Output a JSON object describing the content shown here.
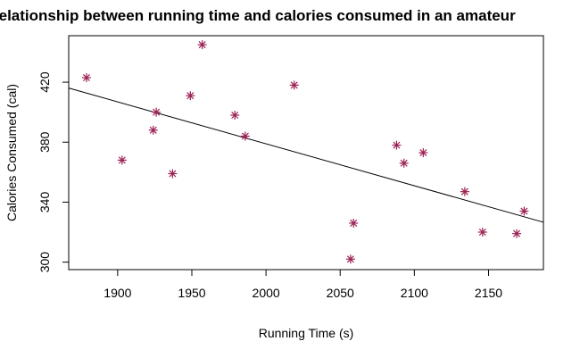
{
  "chart_data": {
    "type": "scatter",
    "title": "relationship between running time and calories consumed in an amateur",
    "xlabel": "Running Time (s)",
    "ylabel": "Calories Consumed (cal)",
    "xlim": [
      1867,
      2187
    ],
    "ylim": [
      295,
      451
    ],
    "xticks": [
      1900,
      1950,
      2000,
      2050,
      2100,
      2150
    ],
    "yticks": [
      300,
      340,
      380,
      420
    ],
    "marker": "asterisk",
    "point_color": "#9b2255",
    "grid": false,
    "legend": "none",
    "points": [
      {
        "x": 1879,
        "y": 423
      },
      {
        "x": 1903,
        "y": 368
      },
      {
        "x": 1924,
        "y": 388
      },
      {
        "x": 1926,
        "y": 400
      },
      {
        "x": 1937,
        "y": 359
      },
      {
        "x": 1949,
        "y": 411
      },
      {
        "x": 1957,
        "y": 445
      },
      {
        "x": 1979,
        "y": 398
      },
      {
        "x": 1986,
        "y": 384
      },
      {
        "x": 2019,
        "y": 418
      },
      {
        "x": 2057,
        "y": 302
      },
      {
        "x": 2059,
        "y": 326
      },
      {
        "x": 2088,
        "y": 378
      },
      {
        "x": 2093,
        "y": 366
      },
      {
        "x": 2106,
        "y": 373
      },
      {
        "x": 2134,
        "y": 347
      },
      {
        "x": 2146,
        "y": 320
      },
      {
        "x": 2169,
        "y": 319
      },
      {
        "x": 2174,
        "y": 334
      }
    ],
    "trend_line": {
      "x": [
        1867,
        2187
      ],
      "y": [
        416.1,
        326.6
      ]
    }
  }
}
